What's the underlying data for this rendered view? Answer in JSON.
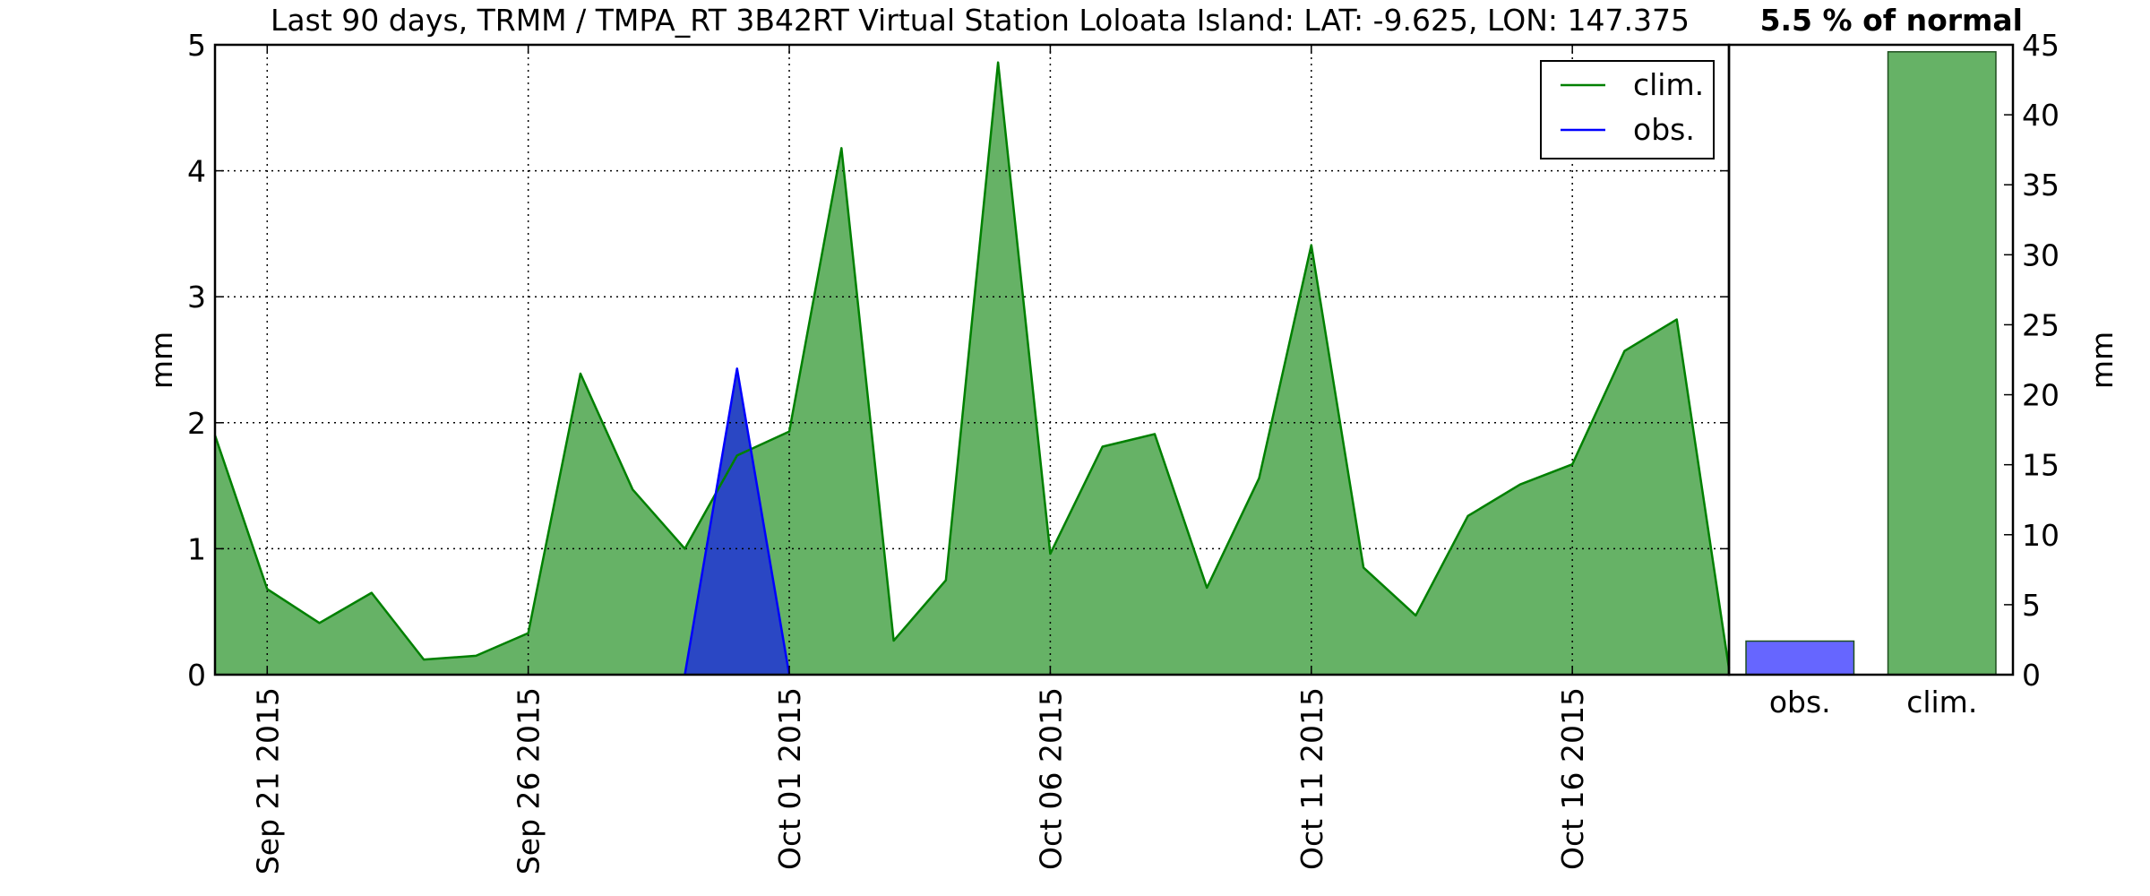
{
  "chart_data": [
    {
      "type": "area",
      "title": "Last 90 days, TRMM / TMPA_RT 3B42RT Virtual Station Loloata Island: LAT: -9.625, LON: 147.375",
      "ylabel": "mm",
      "xlabel": "",
      "x_start": "Sep 20 2015",
      "x_end": "Oct 19 2015",
      "ylim": [
        0,
        5
      ],
      "yticks": [
        "0",
        "1",
        "2",
        "3",
        "4",
        "5"
      ],
      "xticks": [
        "Sep 21 2015",
        "Sep 26 2015",
        "Oct 01 2015",
        "Oct 06 2015",
        "Oct 11 2015",
        "Oct 16 2015"
      ],
      "grid": true,
      "legend": {
        "placement": "upper right",
        "entries": [
          "clim.",
          "obs."
        ]
      },
      "series": [
        {
          "name": "clim.",
          "color": "#008000",
          "fill": "#66b266",
          "x": [
            "Sep 20 2015",
            "Sep 21 2015",
            "Sep 22 2015",
            "Sep 23 2015",
            "Sep 24 2015",
            "Sep 25 2015",
            "Sep 26 2015",
            "Sep 27 2015",
            "Sep 28 2015",
            "Sep 29 2015",
            "Sep 30 2015",
            "Oct 01 2015",
            "Oct 02 2015",
            "Oct 03 2015",
            "Oct 04 2015",
            "Oct 05 2015",
            "Oct 06 2015",
            "Oct 07 2015",
            "Oct 08 2015",
            "Oct 09 2015",
            "Oct 10 2015",
            "Oct 11 2015",
            "Oct 12 2015",
            "Oct 13 2015",
            "Oct 14 2015",
            "Oct 15 2015",
            "Oct 16 2015",
            "Oct 17 2015",
            "Oct 18 2015",
            "Oct 19 2015"
          ],
          "values": [
            1.9,
            0.68,
            0.41,
            0.65,
            0.12,
            0.15,
            0.33,
            2.39,
            1.47,
            1.0,
            1.74,
            1.93,
            4.18,
            0.27,
            0.75,
            4.86,
            0.96,
            1.81,
            1.91,
            0.69,
            1.56,
            3.41,
            0.85,
            0.47,
            1.26,
            1.51,
            1.67,
            2.57,
            2.82,
            0.05
          ]
        },
        {
          "name": "obs.",
          "color": "#0000ff",
          "fill": "#2a47c4",
          "x": [
            "Sep 29 2015",
            "Sep 30 2015",
            "Oct 01 2015"
          ],
          "values": [
            0,
            2.43,
            0
          ]
        }
      ]
    },
    {
      "type": "bar",
      "title": "5.5 % of normal",
      "ylabel": "mm",
      "ylim": [
        0,
        45
      ],
      "yticks": [
        "0",
        "5",
        "10",
        "15",
        "20",
        "25",
        "30",
        "35",
        "40",
        "45"
      ],
      "categories": [
        "obs.",
        "clim."
      ],
      "values": [
        2.4,
        44.5
      ],
      "colors": [
        "#6666ff",
        "#66b266"
      ]
    }
  ]
}
